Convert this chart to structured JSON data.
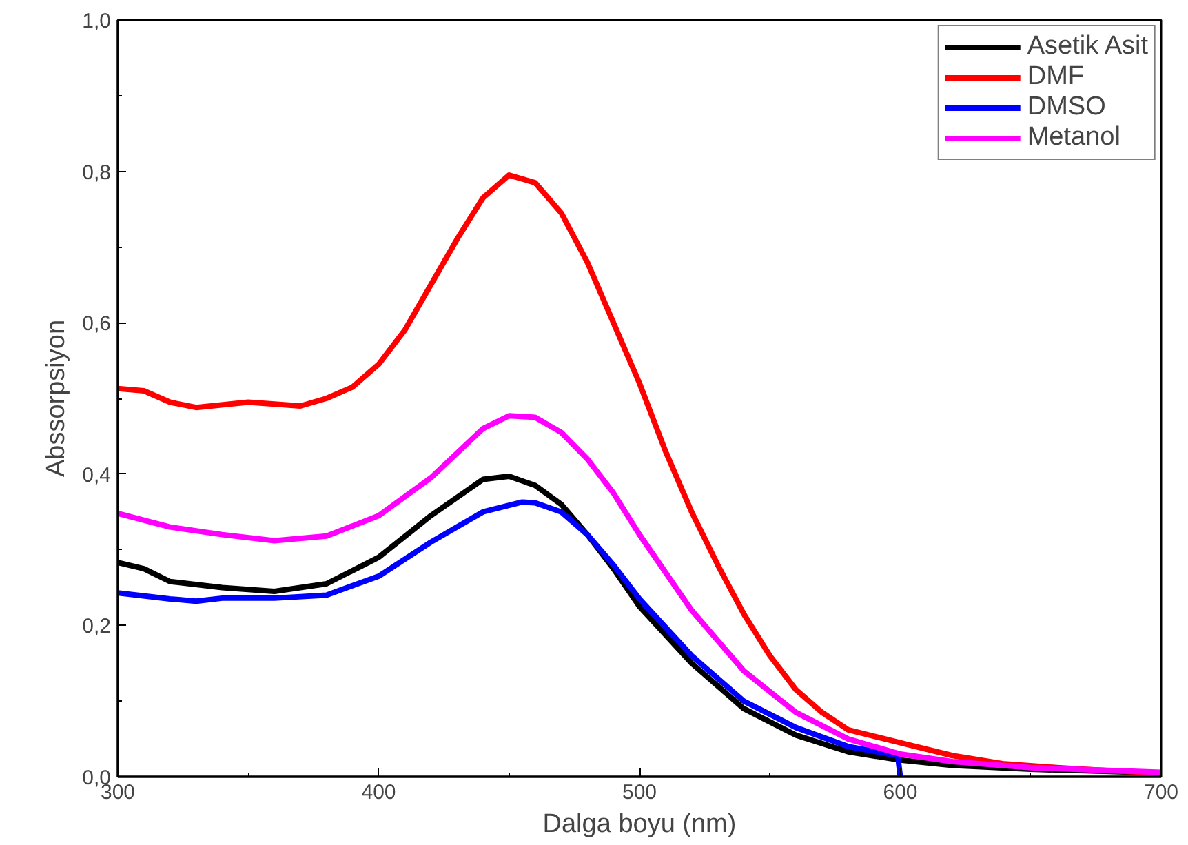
{
  "chart_data": {
    "type": "line",
    "xlabel": "Dalga boyu (nm)",
    "ylabel": "Abssorpsiyon",
    "xlim": [
      300,
      700
    ],
    "xticks": [
      300,
      400,
      500,
      600,
      700
    ],
    "ylim": [
      0,
      1.0
    ],
    "yticks": [
      {
        "value": 0,
        "label": "0,0"
      },
      {
        "value": 0.2,
        "label": "0,2"
      },
      {
        "value": 0.4,
        "label": "0,4"
      },
      {
        "value": 0.6,
        "label": "0,6"
      },
      {
        "value": 0.8,
        "label": "0,8"
      },
      {
        "value": 1.0,
        "label": "1,0"
      }
    ],
    "grid": false,
    "legend": "top right",
    "marker": "none",
    "line_style": "solid",
    "series": [
      {
        "name": "Asetik Asit",
        "color": "#000000",
        "x": [
          300,
          310,
          320,
          340,
          360,
          380,
          400,
          420,
          440,
          450,
          460,
          470,
          480,
          490,
          500,
          520,
          540,
          560,
          580,
          600,
          620,
          650,
          700
        ],
        "values": [
          0.283,
          0.275,
          0.258,
          0.25,
          0.245,
          0.255,
          0.29,
          0.345,
          0.393,
          0.397,
          0.385,
          0.36,
          0.32,
          0.275,
          0.225,
          0.15,
          0.09,
          0.055,
          0.033,
          0.022,
          0.015,
          0.01,
          0.005
        ]
      },
      {
        "name": "DMF",
        "color": "#ff0000",
        "x": [
          300,
          310,
          320,
          330,
          350,
          370,
          380,
          390,
          400,
          410,
          420,
          430,
          440,
          450,
          460,
          470,
          480,
          490,
          500,
          510,
          520,
          530,
          540,
          550,
          560,
          570,
          580,
          600,
          620,
          640,
          660,
          680,
          700
        ],
        "values": [
          0.513,
          0.51,
          0.495,
          0.488,
          0.495,
          0.49,
          0.5,
          0.515,
          0.545,
          0.59,
          0.65,
          0.71,
          0.765,
          0.795,
          0.785,
          0.745,
          0.68,
          0.6,
          0.52,
          0.43,
          0.35,
          0.28,
          0.215,
          0.16,
          0.115,
          0.085,
          0.062,
          0.045,
          0.028,
          0.017,
          0.012,
          0.008,
          0.005
        ]
      },
      {
        "name": "DMSO",
        "color": "#0000ff",
        "x": [
          300,
          320,
          330,
          340,
          360,
          380,
          400,
          420,
          440,
          455,
          460,
          470,
          480,
          490,
          500,
          520,
          540,
          560,
          580,
          599,
          600
        ],
        "values": [
          0.243,
          0.235,
          0.232,
          0.236,
          0.236,
          0.24,
          0.265,
          0.31,
          0.35,
          0.363,
          0.362,
          0.35,
          0.32,
          0.28,
          0.235,
          0.16,
          0.1,
          0.065,
          0.04,
          0.028,
          0.0
        ]
      },
      {
        "name": "Metanol",
        "color": "#ff00ff",
        "x": [
          300,
          320,
          340,
          360,
          380,
          400,
          420,
          440,
          450,
          460,
          470,
          480,
          490,
          500,
          520,
          540,
          560,
          580,
          600,
          620,
          650,
          700
        ],
        "values": [
          0.348,
          0.33,
          0.32,
          0.312,
          0.318,
          0.345,
          0.395,
          0.46,
          0.477,
          0.475,
          0.455,
          0.42,
          0.375,
          0.32,
          0.22,
          0.14,
          0.085,
          0.05,
          0.03,
          0.02,
          0.012,
          0.006
        ]
      }
    ]
  }
}
